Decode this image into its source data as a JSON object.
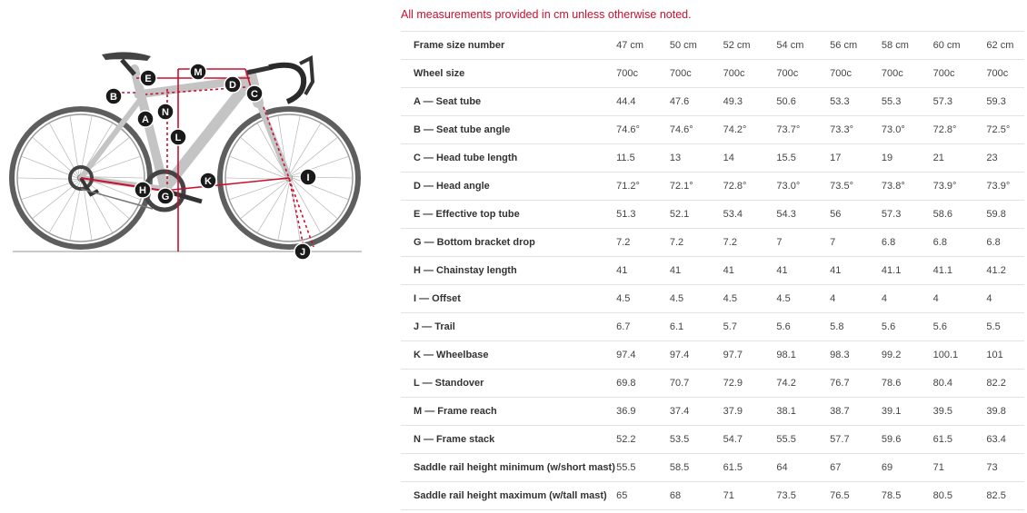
{
  "note": "All measurements provided in cm unless otherwise noted.",
  "diagram_labels": [
    "A",
    "B",
    "C",
    "D",
    "E",
    "G",
    "H",
    "I",
    "J",
    "K",
    "L",
    "M",
    "N"
  ],
  "table": {
    "header": {
      "label": "Frame size number",
      "values": [
        "47 cm",
        "50 cm",
        "52 cm",
        "54 cm",
        "56 cm",
        "58 cm",
        "60 cm",
        "62 cm"
      ]
    },
    "rows": [
      {
        "label": "Wheel size",
        "values": [
          "700c",
          "700c",
          "700c",
          "700c",
          "700c",
          "700c",
          "700c",
          "700c"
        ]
      },
      {
        "label": "A — Seat tube",
        "values": [
          "44.4",
          "47.6",
          "49.3",
          "50.6",
          "53.3",
          "55.3",
          "57.3",
          "59.3"
        ]
      },
      {
        "label": "B — Seat tube angle",
        "values": [
          "74.6°",
          "74.6°",
          "74.2°",
          "73.7°",
          "73.3°",
          "73.0°",
          "72.8°",
          "72.5°"
        ]
      },
      {
        "label": "C — Head tube length",
        "values": [
          "11.5",
          "13",
          "14",
          "15.5",
          "17",
          "19",
          "21",
          "23"
        ]
      },
      {
        "label": "D — Head angle",
        "values": [
          "71.2°",
          "72.1°",
          "72.8°",
          "73.0°",
          "73.5°",
          "73.8°",
          "73.9°",
          "73.9°"
        ]
      },
      {
        "label": "E — Effective top tube",
        "values": [
          "51.3",
          "52.1",
          "53.4",
          "54.3",
          "56",
          "57.3",
          "58.6",
          "59.8"
        ]
      },
      {
        "label": "G — Bottom bracket drop",
        "values": [
          "7.2",
          "7.2",
          "7.2",
          "7",
          "7",
          "6.8",
          "6.8",
          "6.8"
        ]
      },
      {
        "label": "H — Chainstay length",
        "values": [
          "41",
          "41",
          "41",
          "41",
          "41",
          "41.1",
          "41.1",
          "41.2"
        ]
      },
      {
        "label": "I — Offset",
        "values": [
          "4.5",
          "4.5",
          "4.5",
          "4.5",
          "4",
          "4",
          "4",
          "4"
        ]
      },
      {
        "label": "J — Trail",
        "values": [
          "6.7",
          "6.1",
          "5.7",
          "5.6",
          "5.8",
          "5.6",
          "5.6",
          "5.5"
        ]
      },
      {
        "label": "K — Wheelbase",
        "values": [
          "97.4",
          "97.4",
          "97.7",
          "98.1",
          "98.3",
          "99.2",
          "100.1",
          "101"
        ]
      },
      {
        "label": "L — Standover",
        "values": [
          "69.8",
          "70.7",
          "72.9",
          "74.2",
          "76.7",
          "78.6",
          "80.4",
          "82.2"
        ]
      },
      {
        "label": "M — Frame reach",
        "values": [
          "36.9",
          "37.4",
          "37.9",
          "38.1",
          "38.7",
          "39.1",
          "39.5",
          "39.8"
        ]
      },
      {
        "label": "N — Frame stack",
        "values": [
          "52.2",
          "53.5",
          "54.7",
          "55.5",
          "57.7",
          "59.6",
          "61.5",
          "63.4"
        ]
      },
      {
        "label": "Saddle rail height minimum (w/short mast)",
        "values": [
          "55.5",
          "58.5",
          "61.5",
          "64",
          "67",
          "69",
          "71",
          "73"
        ]
      },
      {
        "label": "Saddle rail height maximum (w/tall mast)",
        "values": [
          "65",
          "68",
          "71",
          "73.5",
          "76.5",
          "78.5",
          "80.5",
          "82.5"
        ]
      }
    ]
  }
}
